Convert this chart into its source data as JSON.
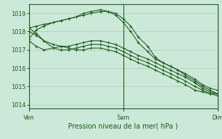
{
  "bg_color": "#cce8d8",
  "grid_color": "#aaccbb",
  "line_color": "#1a5c1a",
  "xlabel": "Pression niveau de la mer( hPa )",
  "ylim": [
    1013.8,
    1019.5
  ],
  "yticks": [
    1014,
    1015,
    1016,
    1017,
    1018,
    1019
  ],
  "xtick_labels": [
    "Ven",
    "Sam",
    "Dim"
  ],
  "xtick_positions": [
    0,
    0.5,
    1.0
  ],
  "lines": [
    {
      "x": [
        0.0,
        0.04,
        0.08,
        0.13,
        0.17,
        0.21,
        0.25,
        0.29,
        0.33,
        0.38,
        0.42,
        0.46,
        0.5,
        0.54,
        0.58,
        0.63,
        0.67,
        0.71,
        0.75,
        0.79,
        0.83,
        0.88,
        0.92,
        0.96,
        1.0
      ],
      "y": [
        1017.6,
        1018.1,
        1018.3,
        1018.5,
        1018.6,
        1018.7,
        1018.8,
        1018.9,
        1019.0,
        1019.1,
        1019.1,
        1019.0,
        1018.7,
        1018.3,
        1017.7,
        1017.2,
        1016.6,
        1016.3,
        1016.1,
        1015.9,
        1015.6,
        1015.3,
        1015.0,
        1014.8,
        1014.6
      ]
    },
    {
      "x": [
        0.0,
        0.04,
        0.08,
        0.13,
        0.17,
        0.21,
        0.25,
        0.29,
        0.33,
        0.38,
        0.42,
        0.46,
        0.5,
        0.54,
        0.58,
        0.63,
        0.67,
        0.71,
        0.75,
        0.79,
        0.83,
        0.88,
        0.92,
        0.96,
        1.0
      ],
      "y": [
        1018.2,
        1018.3,
        1018.4,
        1018.5,
        1018.6,
        1018.7,
        1018.8,
        1019.0,
        1019.1,
        1019.2,
        1019.1,
        1018.9,
        1018.5,
        1018.0,
        1017.4,
        1016.9,
        1016.5,
        1016.3,
        1016.1,
        1015.9,
        1015.7,
        1015.4,
        1015.1,
        1014.9,
        1014.8
      ]
    },
    {
      "x": [
        0.0,
        0.04,
        0.08,
        0.13,
        0.17,
        0.21,
        0.25,
        0.29,
        0.33,
        0.38,
        0.42,
        0.46,
        0.5,
        0.54,
        0.58,
        0.63,
        0.67,
        0.71,
        0.75,
        0.79,
        0.83,
        0.88,
        0.92,
        0.96,
        1.0
      ],
      "y": [
        1018.0,
        1017.8,
        1017.5,
        1017.3,
        1017.2,
        1017.2,
        1017.3,
        1017.4,
        1017.5,
        1017.5,
        1017.4,
        1017.3,
        1017.1,
        1016.9,
        1016.7,
        1016.5,
        1016.3,
        1016.1,
        1015.9,
        1015.7,
        1015.5,
        1015.2,
        1014.9,
        1014.7,
        1014.6
      ]
    },
    {
      "x": [
        0.0,
        0.04,
        0.08,
        0.13,
        0.17,
        0.21,
        0.25,
        0.29,
        0.33,
        0.38,
        0.42,
        0.46,
        0.5,
        0.54,
        0.58,
        0.63,
        0.67,
        0.71,
        0.75,
        0.79,
        0.83,
        0.88,
        0.92,
        0.96,
        1.0
      ],
      "y": [
        1018.2,
        1017.9,
        1017.5,
        1017.1,
        1017.0,
        1017.0,
        1017.1,
        1017.2,
        1017.3,
        1017.3,
        1017.2,
        1017.1,
        1016.9,
        1016.7,
        1016.5,
        1016.3,
        1016.1,
        1015.9,
        1015.7,
        1015.5,
        1015.3,
        1015.0,
        1014.8,
        1014.6,
        1014.5
      ]
    },
    {
      "x": [
        0.0,
        0.04,
        0.08,
        0.13,
        0.17,
        0.21,
        0.25,
        0.29,
        0.33,
        0.38,
        0.42,
        0.46,
        0.5,
        0.54,
        0.58,
        0.63,
        0.67,
        0.71,
        0.75,
        0.79,
        0.83,
        0.88,
        0.92,
        0.96,
        1.0
      ],
      "y": [
        1017.5,
        1017.2,
        1017.0,
        1017.1,
        1017.2,
        1017.1,
        1017.0,
        1017.0,
        1017.1,
        1017.1,
        1017.0,
        1016.9,
        1016.7,
        1016.5,
        1016.3,
        1016.1,
        1015.9,
        1015.7,
        1015.5,
        1015.3,
        1015.1,
        1014.8,
        1014.7,
        1014.6,
        1014.6
      ]
    }
  ],
  "marker": "+",
  "linewidth": 0.8,
  "markersize": 3,
  "xlabel_fontsize": 7,
  "tick_fontsize": 6
}
